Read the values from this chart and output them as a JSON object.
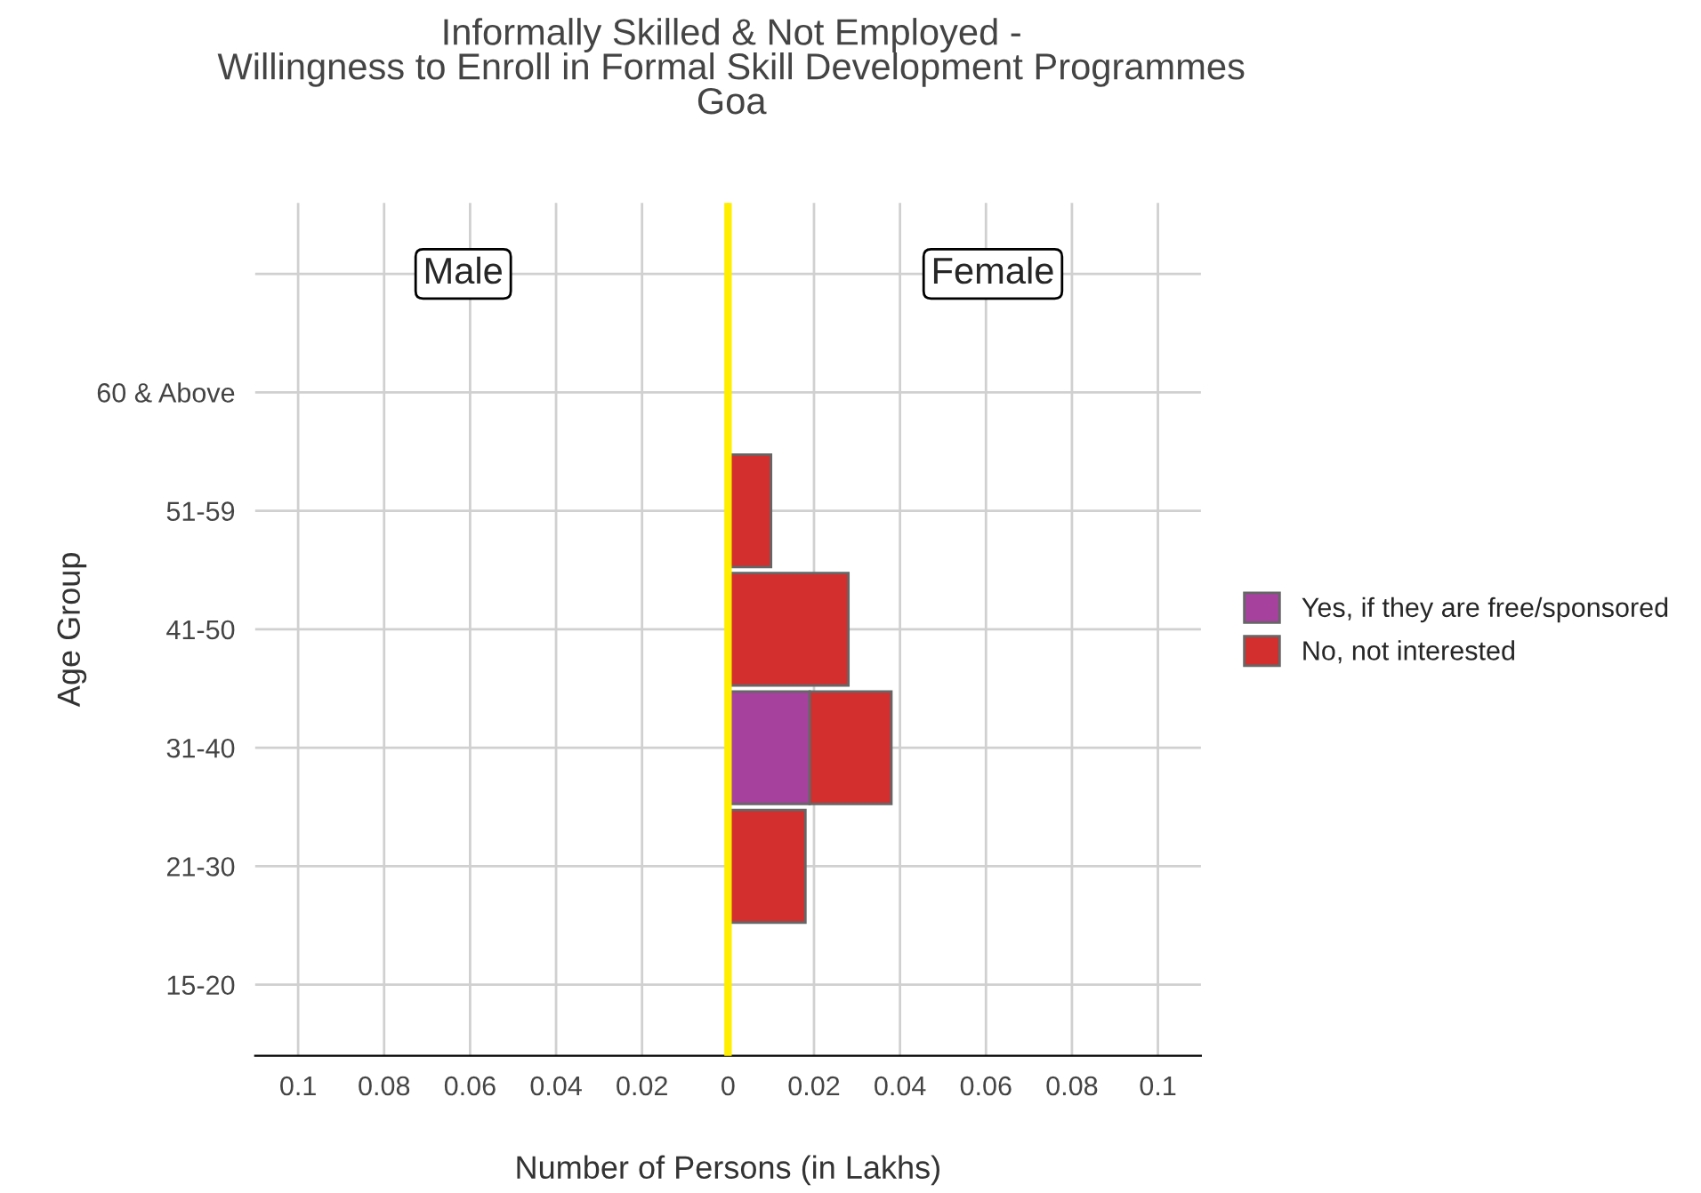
{
  "chart_data": {
    "type": "bar",
    "orientation": "horizontal",
    "stacked": true,
    "title": "Informally Skilled & Not Employed -\nWillingness to Enroll in Formal Skill Development Programmes\nGoa",
    "xlabel": "Number of Persons (in Lakhs)",
    "ylabel": "Age Group",
    "categories": [
      null,
      "60 & Above",
      "51-59",
      "41-50",
      "31-40",
      "21-30",
      "15-20"
    ],
    "series": [
      {
        "name": "Yes, if they are free/sponsored",
        "color": "#a6429e",
        "values": [
          null,
          null,
          null,
          null,
          0.019,
          null,
          null
        ]
      },
      {
        "name": "No, not interested",
        "color": "#d32f2f",
        "values": [
          null,
          null,
          0.01,
          0.028,
          0.019,
          0.018,
          null
        ]
      }
    ],
    "xlim": [
      -0.11,
      0.11
    ],
    "xticks": [
      {
        "value": -0.1,
        "label": "0.1"
      },
      {
        "value": -0.08,
        "label": "0.08"
      },
      {
        "value": -0.06,
        "label": "0.06"
      },
      {
        "value": -0.04,
        "label": "0.04"
      },
      {
        "value": -0.02,
        "label": "0.02"
      },
      0,
      0.02,
      0.04,
      0.06,
      0.08,
      0.1
    ],
    "ref_lines": [
      {
        "axis": "x",
        "value": 0,
        "color": "#ffee00"
      }
    ],
    "annotations": [
      "Male",
      "Female"
    ],
    "grid": true,
    "legend": "right"
  }
}
